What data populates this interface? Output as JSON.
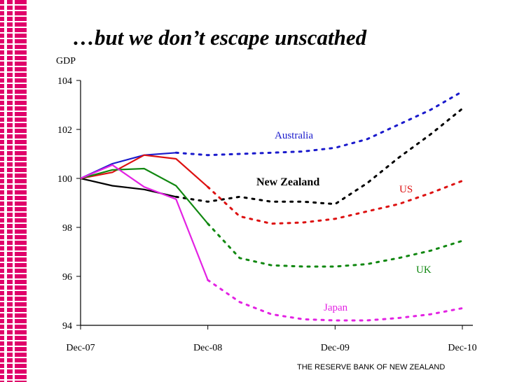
{
  "slide": {
    "title": "…but we don’t escape unscathed",
    "footer": "THE RESERVE BANK OF NEW ZEALAND"
  },
  "chart_data": {
    "type": "line",
    "ylabel": "GDP",
    "ylim": [
      94,
      104
    ],
    "yticks": [
      94,
      96,
      98,
      100,
      102,
      104
    ],
    "xlim": [
      0,
      12
    ],
    "xticks": [
      {
        "value": 0,
        "label": "Dec-07"
      },
      {
        "value": 4,
        "label": "Dec-08"
      },
      {
        "value": 8,
        "label": "Dec-09"
      },
      {
        "value": 12,
        "label": "Dec-10"
      }
    ],
    "legend": "inline labels",
    "series": [
      {
        "name": "Australia",
        "color": "#1a1acc",
        "actual": [
          [
            0,
            100
          ],
          [
            1,
            100.6
          ],
          [
            2,
            100.95
          ],
          [
            3,
            101.05
          ]
        ],
        "forecast": [
          [
            3,
            101.05
          ],
          [
            4,
            100.95
          ],
          [
            5,
            101.0
          ],
          [
            6,
            101.05
          ],
          [
            7,
            101.1
          ],
          [
            8,
            101.25
          ],
          [
            9,
            101.6
          ],
          [
            10,
            102.2
          ],
          [
            11,
            102.8
          ],
          [
            12,
            103.55
          ]
        ]
      },
      {
        "name": "New Zealand",
        "color": "#000000",
        "actual": [
          [
            0,
            100
          ],
          [
            1,
            99.7
          ],
          [
            2,
            99.55
          ],
          [
            3,
            99.25
          ]
        ],
        "forecast": [
          [
            3,
            99.25
          ],
          [
            4,
            99.05
          ],
          [
            5,
            99.25
          ],
          [
            6,
            99.05
          ],
          [
            7,
            99.05
          ],
          [
            8,
            98.95
          ],
          [
            9,
            99.8
          ],
          [
            10,
            100.85
          ],
          [
            11,
            101.8
          ],
          [
            12,
            102.85
          ]
        ]
      },
      {
        "name": "US",
        "color": "#dd1111",
        "actual": [
          [
            0,
            100
          ],
          [
            1,
            100.25
          ],
          [
            2,
            100.95
          ],
          [
            3,
            100.8
          ],
          [
            4,
            99.65
          ]
        ],
        "forecast": [
          [
            4,
            99.65
          ],
          [
            5,
            98.45
          ],
          [
            6,
            98.15
          ],
          [
            7,
            98.2
          ],
          [
            8,
            98.35
          ],
          [
            9,
            98.65
          ],
          [
            10,
            98.95
          ],
          [
            11,
            99.4
          ],
          [
            12,
            99.9
          ]
        ]
      },
      {
        "name": "UK",
        "color": "#118811",
        "actual": [
          [
            0,
            100
          ],
          [
            1,
            100.35
          ],
          [
            2,
            100.4
          ],
          [
            3,
            99.7
          ],
          [
            4,
            98.15
          ]
        ],
        "forecast": [
          [
            4,
            98.15
          ],
          [
            5,
            96.75
          ],
          [
            6,
            96.45
          ],
          [
            7,
            96.4
          ],
          [
            8,
            96.4
          ],
          [
            9,
            96.5
          ],
          [
            10,
            96.75
          ],
          [
            11,
            97.05
          ],
          [
            12,
            97.45
          ]
        ]
      },
      {
        "name": "Japan",
        "color": "#e322e3",
        "actual": [
          [
            0,
            100
          ],
          [
            1,
            100.55
          ],
          [
            2,
            99.65
          ],
          [
            3,
            99.15
          ],
          [
            4,
            95.85
          ]
        ],
        "forecast": [
          [
            4,
            95.85
          ],
          [
            5,
            94.95
          ],
          [
            6,
            94.45
          ],
          [
            7,
            94.25
          ],
          [
            8,
            94.2
          ],
          [
            9,
            94.2
          ],
          [
            10,
            94.3
          ],
          [
            11,
            94.45
          ],
          [
            12,
            94.7
          ]
        ]
      }
    ]
  }
}
